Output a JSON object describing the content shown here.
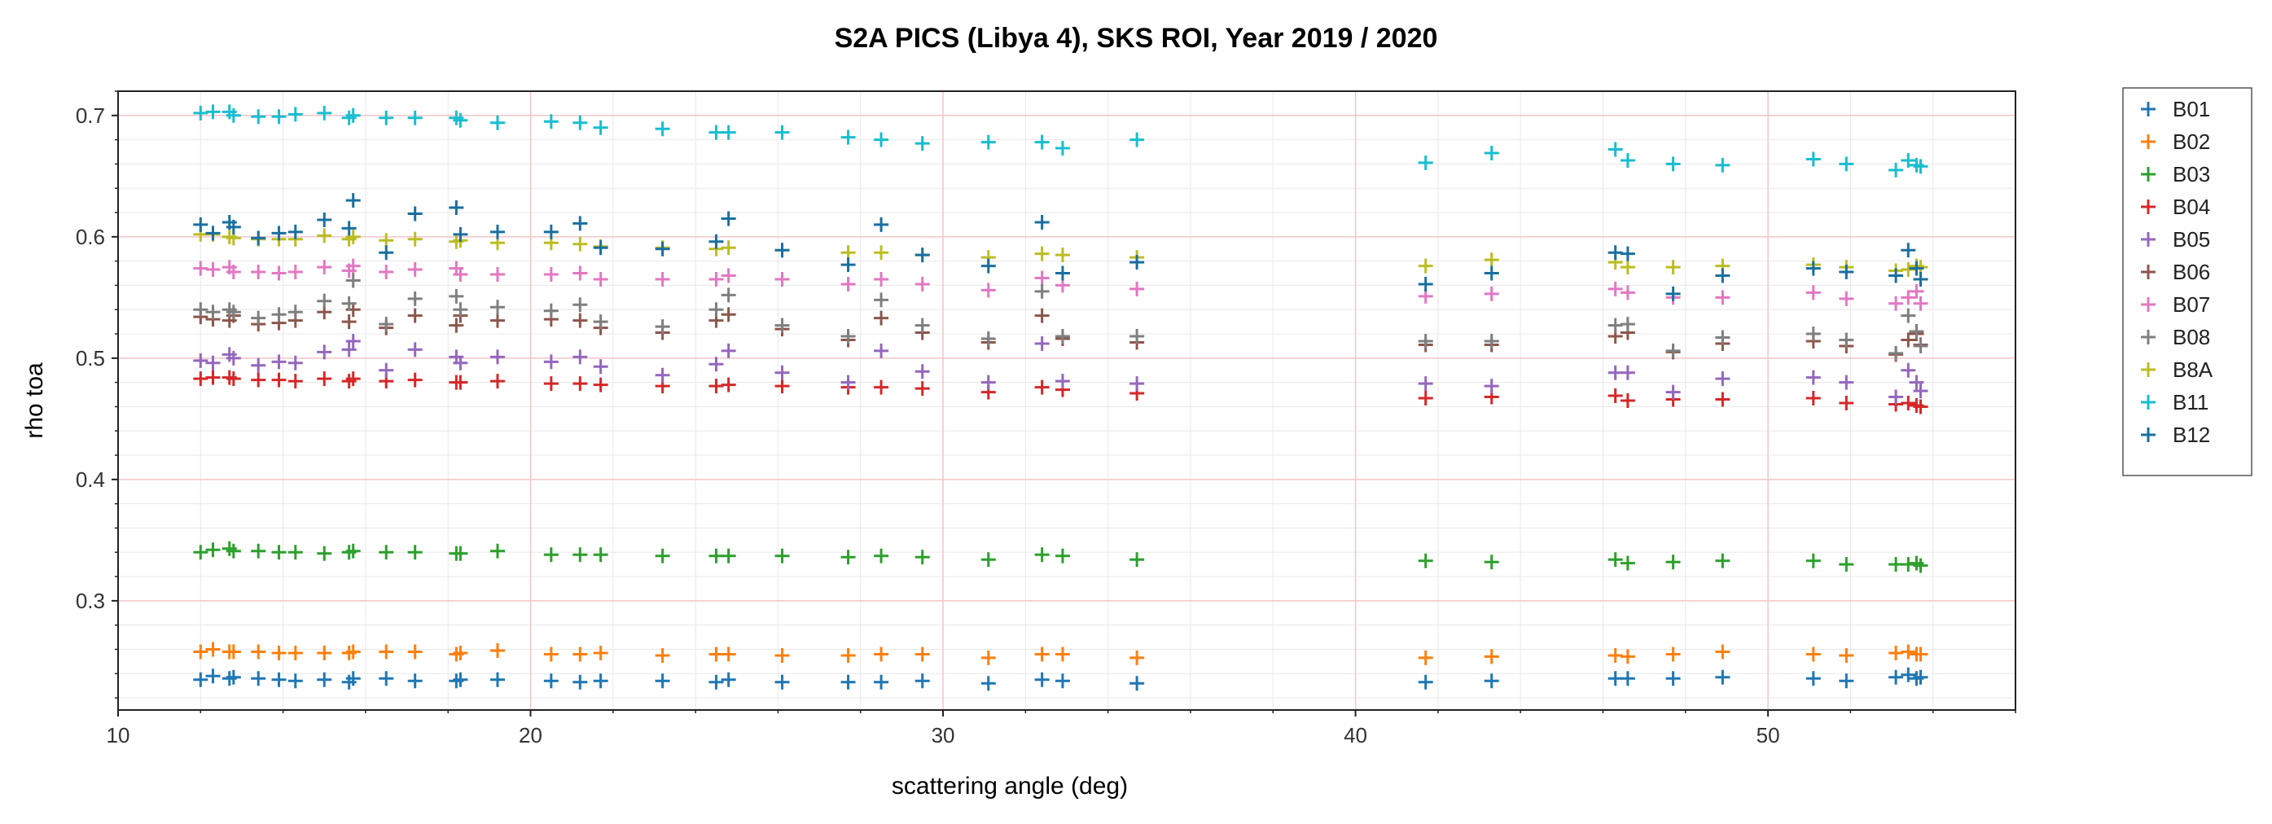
{
  "chart_data": {
    "type": "scatter",
    "title": "S2A PICS (Libya 4), SKS ROI, Year 2019 / 2020",
    "xlabel": "scattering angle (deg)",
    "ylabel": "rho toa",
    "xlim": [
      10,
      56
    ],
    "ylim": [
      0.21,
      0.72
    ],
    "xticks": [
      10,
      20,
      30,
      40,
      50
    ],
    "xtick_labels": [
      "10",
      "20",
      "30",
      "40",
      "50"
    ],
    "yticks": [
      0.3,
      0.4,
      0.5,
      0.6,
      0.7
    ],
    "ytick_labels": [
      "0.3",
      "0.4",
      "0.5",
      "0.6",
      "0.7"
    ],
    "grid": true,
    "legend": "outside-right",
    "marker": "+",
    "x": [
      12.0,
      12.3,
      12.7,
      12.8,
      13.4,
      13.9,
      14.3,
      15.0,
      15.6,
      15.7,
      16.5,
      17.2,
      18.2,
      18.3,
      19.2,
      20.5,
      21.2,
      21.7,
      23.2,
      24.5,
      24.8,
      26.1,
      27.7,
      28.5,
      29.5,
      31.1,
      32.4,
      32.9,
      34.7,
      41.7,
      43.3,
      46.3,
      46.6,
      47.7,
      48.9,
      51.1,
      51.9,
      53.1,
      53.4,
      53.6,
      53.7
    ],
    "series": [
      {
        "name": "B01",
        "color": "#1f77b4",
        "values": [
          0.235,
          0.238,
          0.236,
          0.237,
          0.236,
          0.235,
          0.234,
          0.235,
          0.233,
          0.236,
          0.236,
          0.234,
          0.234,
          0.235,
          0.235,
          0.234,
          0.233,
          0.234,
          0.234,
          0.233,
          0.235,
          0.233,
          0.233,
          0.233,
          0.234,
          0.232,
          0.235,
          0.234,
          0.232,
          0.233,
          0.234,
          0.236,
          0.236,
          0.236,
          0.237,
          0.236,
          0.234,
          0.237,
          0.239,
          0.236,
          0.237
        ]
      },
      {
        "name": "B02",
        "color": "#ff7f0e",
        "values": [
          0.258,
          0.26,
          0.258,
          0.258,
          0.258,
          0.257,
          0.257,
          0.257,
          0.257,
          0.258,
          0.258,
          0.258,
          0.256,
          0.257,
          0.259,
          0.256,
          0.256,
          0.257,
          0.255,
          0.256,
          0.256,
          0.255,
          0.255,
          0.256,
          0.256,
          0.253,
          0.256,
          0.256,
          0.253,
          0.253,
          0.254,
          0.255,
          0.254,
          0.256,
          0.258,
          0.256,
          0.255,
          0.257,
          0.258,
          0.256,
          0.256
        ]
      },
      {
        "name": "B03",
        "color": "#2ca02c",
        "values": [
          0.34,
          0.342,
          0.343,
          0.341,
          0.341,
          0.34,
          0.34,
          0.339,
          0.34,
          0.341,
          0.34,
          0.34,
          0.339,
          0.339,
          0.341,
          0.338,
          0.338,
          0.338,
          0.337,
          0.337,
          0.337,
          0.337,
          0.336,
          0.337,
          0.336,
          0.334,
          0.338,
          0.337,
          0.334,
          0.333,
          0.332,
          0.334,
          0.331,
          0.332,
          0.333,
          0.333,
          0.33,
          0.33,
          0.33,
          0.331,
          0.329
        ]
      },
      {
        "name": "B04",
        "color": "#d62728",
        "values": [
          0.483,
          0.484,
          0.484,
          0.483,
          0.482,
          0.482,
          0.481,
          0.483,
          0.481,
          0.483,
          0.481,
          0.482,
          0.48,
          0.48,
          0.481,
          0.479,
          0.479,
          0.478,
          0.477,
          0.477,
          0.478,
          0.477,
          0.476,
          0.476,
          0.475,
          0.472,
          0.476,
          0.474,
          0.471,
          0.467,
          0.468,
          0.469,
          0.465,
          0.466,
          0.466,
          0.467,
          0.463,
          0.462,
          0.463,
          0.461,
          0.46
        ]
      },
      {
        "name": "B05",
        "color": "#9467bd",
        "values": [
          0.498,
          0.496,
          0.503,
          0.5,
          0.494,
          0.497,
          0.496,
          0.505,
          0.507,
          0.514,
          0.49,
          0.507,
          0.501,
          0.496,
          0.501,
          0.497,
          0.501,
          0.493,
          0.486,
          0.495,
          0.506,
          0.488,
          0.48,
          0.506,
          0.489,
          0.48,
          0.512,
          0.481,
          0.479,
          0.479,
          0.477,
          0.488,
          0.488,
          0.472,
          0.483,
          0.484,
          0.48,
          0.468,
          0.49,
          0.48,
          0.473
        ]
      },
      {
        "name": "B06",
        "color": "#8c564b",
        "values": [
          0.534,
          0.532,
          0.531,
          0.535,
          0.528,
          0.529,
          0.531,
          0.538,
          0.53,
          0.54,
          0.525,
          0.535,
          0.527,
          0.535,
          0.531,
          0.532,
          0.531,
          0.525,
          0.521,
          0.531,
          0.536,
          0.524,
          0.515,
          0.533,
          0.521,
          0.513,
          0.535,
          0.516,
          0.513,
          0.511,
          0.511,
          0.518,
          0.521,
          0.505,
          0.512,
          0.514,
          0.51,
          0.503,
          0.515,
          0.52,
          0.511
        ]
      },
      {
        "name": "B07",
        "color": "#e377c2",
        "values": [
          0.574,
          0.573,
          0.575,
          0.571,
          0.571,
          0.57,
          0.571,
          0.575,
          0.572,
          0.576,
          0.571,
          0.573,
          0.574,
          0.569,
          0.569,
          0.569,
          0.57,
          0.565,
          0.565,
          0.565,
          0.568,
          0.565,
          0.561,
          0.565,
          0.561,
          0.556,
          0.566,
          0.56,
          0.557,
          0.551,
          0.553,
          0.557,
          0.554,
          0.55,
          0.55,
          0.554,
          0.549,
          0.545,
          0.55,
          0.555,
          0.545
        ]
      },
      {
        "name": "B08",
        "color": "#7f7f7f",
        "values": [
          0.54,
          0.538,
          0.54,
          0.538,
          0.533,
          0.536,
          0.538,
          0.547,
          0.545,
          0.564,
          0.528,
          0.549,
          0.551,
          0.54,
          0.542,
          0.539,
          0.544,
          0.53,
          0.526,
          0.54,
          0.552,
          0.527,
          0.518,
          0.548,
          0.527,
          0.516,
          0.555,
          0.518,
          0.518,
          0.514,
          0.514,
          0.527,
          0.528,
          0.506,
          0.517,
          0.52,
          0.515,
          0.504,
          0.535,
          0.522,
          0.51
        ]
      },
      {
        "name": "B8A",
        "color": "#bcbd22",
        "values": [
          0.602,
          0.602,
          0.6,
          0.599,
          0.598,
          0.598,
          0.598,
          0.601,
          0.598,
          0.6,
          0.597,
          0.598,
          0.596,
          0.597,
          0.595,
          0.595,
          0.594,
          0.592,
          0.591,
          0.59,
          0.591,
          0.589,
          0.587,
          0.587,
          0.585,
          0.583,
          0.586,
          0.585,
          0.583,
          0.576,
          0.581,
          0.579,
          0.575,
          0.575,
          0.576,
          0.577,
          0.575,
          0.572,
          0.573,
          0.576,
          0.575
        ]
      },
      {
        "name": "B11",
        "color": "#17becf",
        "values": [
          0.702,
          0.703,
          0.703,
          0.7,
          0.699,
          0.699,
          0.701,
          0.702,
          0.698,
          0.7,
          0.698,
          0.698,
          0.698,
          0.696,
          0.694,
          0.695,
          0.694,
          0.69,
          0.689,
          0.686,
          0.686,
          0.686,
          0.682,
          0.68,
          0.677,
          0.678,
          0.678,
          0.673,
          0.68,
          0.661,
          0.669,
          0.672,
          0.663,
          0.66,
          0.659,
          0.664,
          0.66,
          0.655,
          0.663,
          0.659,
          0.658
        ]
      },
      {
        "name": "B12",
        "color": "#1a6fa0",
        "values": [
          0.61,
          0.603,
          0.612,
          0.608,
          0.599,
          0.603,
          0.604,
          0.614,
          0.607,
          0.63,
          0.587,
          0.619,
          0.624,
          0.602,
          0.604,
          0.604,
          0.611,
          0.591,
          0.59,
          0.596,
          0.615,
          0.589,
          0.577,
          0.61,
          0.585,
          0.576,
          0.612,
          0.57,
          0.579,
          0.561,
          0.57,
          0.587,
          0.586,
          0.553,
          0.568,
          0.574,
          0.571,
          0.568,
          0.589,
          0.574,
          0.565
        ]
      }
    ]
  }
}
